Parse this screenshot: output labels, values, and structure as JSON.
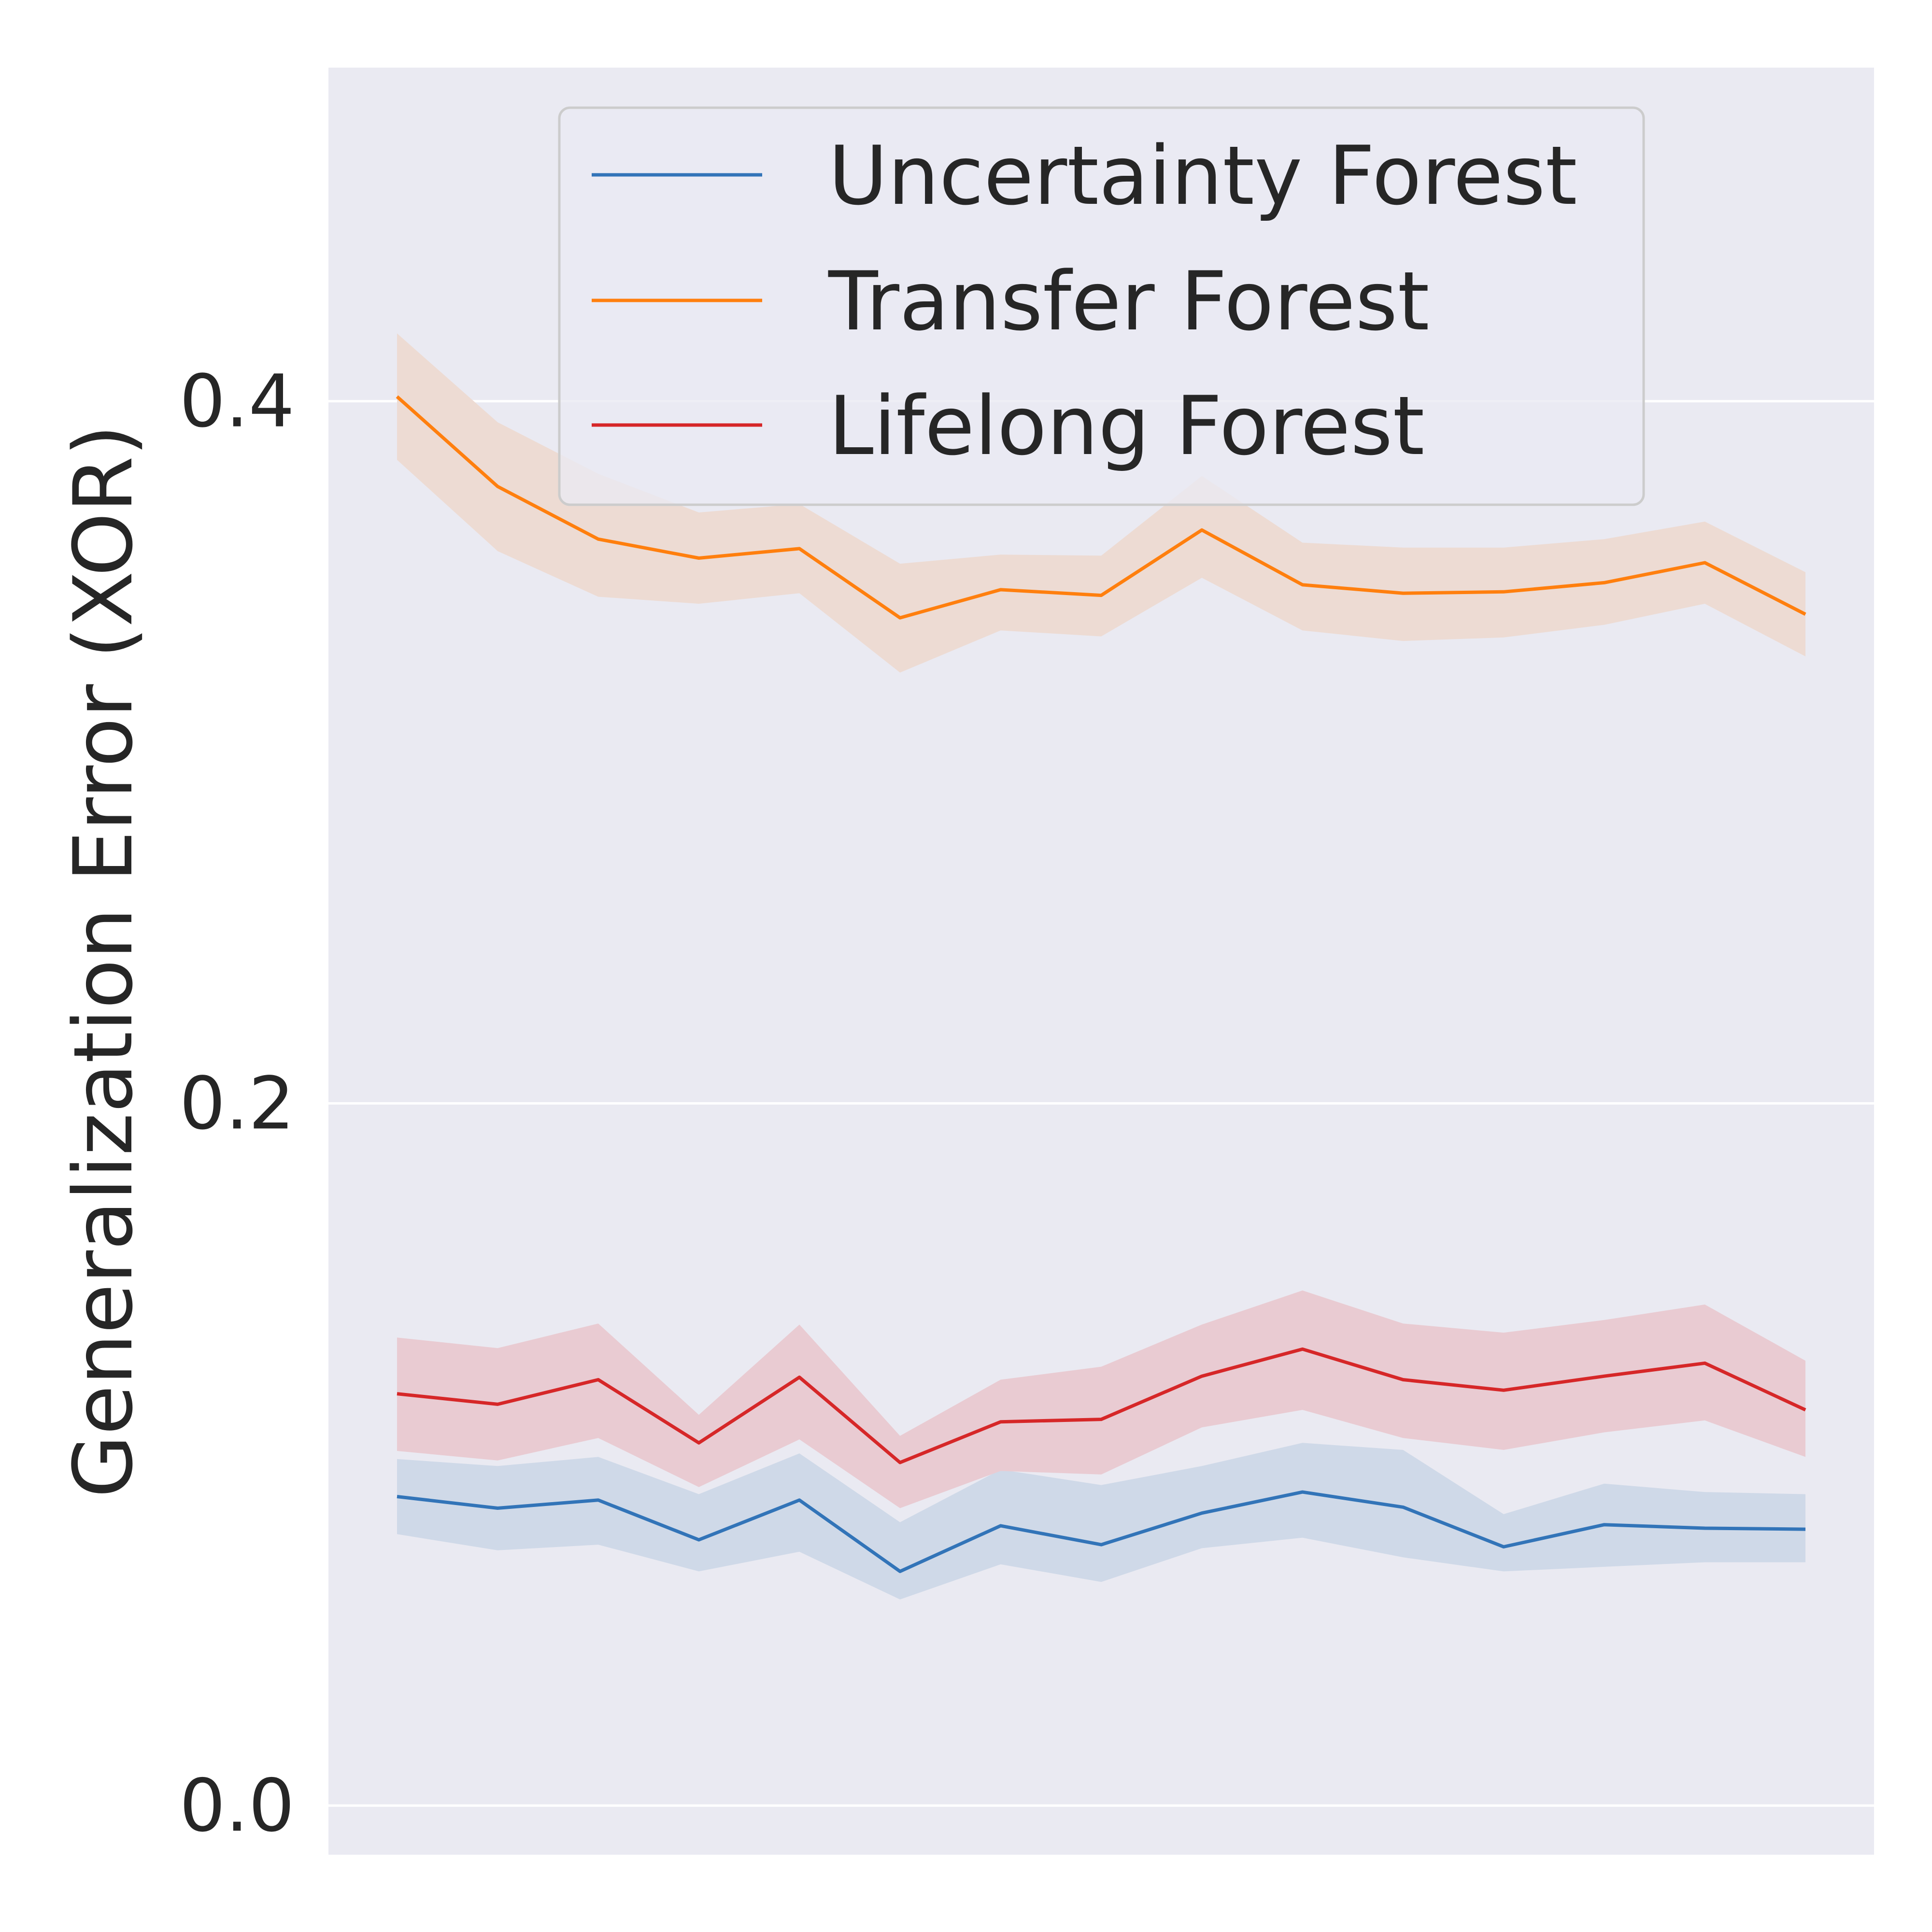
{
  "chart_data": {
    "type": "line",
    "title": "",
    "xlabel": "",
    "ylabel": "Generalization Error (XOR)",
    "ylim": [
      -0.014,
      0.495
    ],
    "yticks": [
      {
        "value": 0.0,
        "label": "0.0"
      },
      {
        "value": 0.2,
        "label": "0.2"
      },
      {
        "value": 0.4,
        "label": "0.4"
      }
    ],
    "grid": true,
    "legend_position": "top-right",
    "x": [
      1,
      2,
      3,
      4,
      5,
      6,
      7,
      8,
      9,
      10,
      11,
      12,
      13,
      14,
      15
    ],
    "series": [
      {
        "name": "Uncertainty Forest",
        "color": "#3274b8",
        "band_color": "#cfd9e8",
        "values": [
          0.088,
          0.0847,
          0.087,
          0.0757,
          0.087,
          0.0667,
          0.0797,
          0.0743,
          0.0833,
          0.0893,
          0.085,
          0.0737,
          0.08,
          0.079,
          0.0787
        ],
        "lower": [
          0.0773,
          0.0727,
          0.0743,
          0.0667,
          0.0723,
          0.0587,
          0.0687,
          0.0637,
          0.0733,
          0.0763,
          0.0707,
          0.0667,
          0.068,
          0.0693,
          0.0693
        ],
        "upper": [
          0.0987,
          0.0967,
          0.0993,
          0.0887,
          0.1003,
          0.0807,
          0.0957,
          0.0913,
          0.0967,
          0.1033,
          0.1013,
          0.083,
          0.0917,
          0.0893,
          0.0887
        ]
      },
      {
        "name": "Transfer Forest",
        "color": "#ff7f0e",
        "band_color": "#eddbd3",
        "values": [
          0.4013,
          0.3757,
          0.3607,
          0.3553,
          0.358,
          0.3383,
          0.3463,
          0.3447,
          0.3633,
          0.3477,
          0.3453,
          0.3457,
          0.3483,
          0.354,
          0.3393
        ],
        "lower": [
          0.3833,
          0.3573,
          0.3443,
          0.3423,
          0.3453,
          0.3227,
          0.3347,
          0.333,
          0.3497,
          0.3347,
          0.3317,
          0.3327,
          0.3363,
          0.3423,
          0.3273
        ],
        "upper": [
          0.4193,
          0.394,
          0.3793,
          0.3683,
          0.3707,
          0.3537,
          0.3563,
          0.356,
          0.3787,
          0.3597,
          0.3583,
          0.3583,
          0.3607,
          0.3657,
          0.3513
        ]
      },
      {
        "name": "Lifelong Forest",
        "color": "#d62728",
        "band_color": "#e9cbd2",
        "values": [
          0.1173,
          0.1143,
          0.1213,
          0.1033,
          0.122,
          0.0977,
          0.1093,
          0.11,
          0.1223,
          0.13,
          0.1213,
          0.1183,
          0.1223,
          0.126,
          0.1127
        ],
        "lower": [
          0.101,
          0.0983,
          0.1047,
          0.0907,
          0.1043,
          0.0847,
          0.0953,
          0.0943,
          0.1077,
          0.1127,
          0.1047,
          0.1013,
          0.1063,
          0.1097,
          0.0993
        ],
        "upper": [
          0.1333,
          0.1303,
          0.1373,
          0.1113,
          0.137,
          0.1053,
          0.1213,
          0.125,
          0.137,
          0.1467,
          0.1373,
          0.1347,
          0.1383,
          0.1427,
          0.1267
        ]
      }
    ]
  }
}
